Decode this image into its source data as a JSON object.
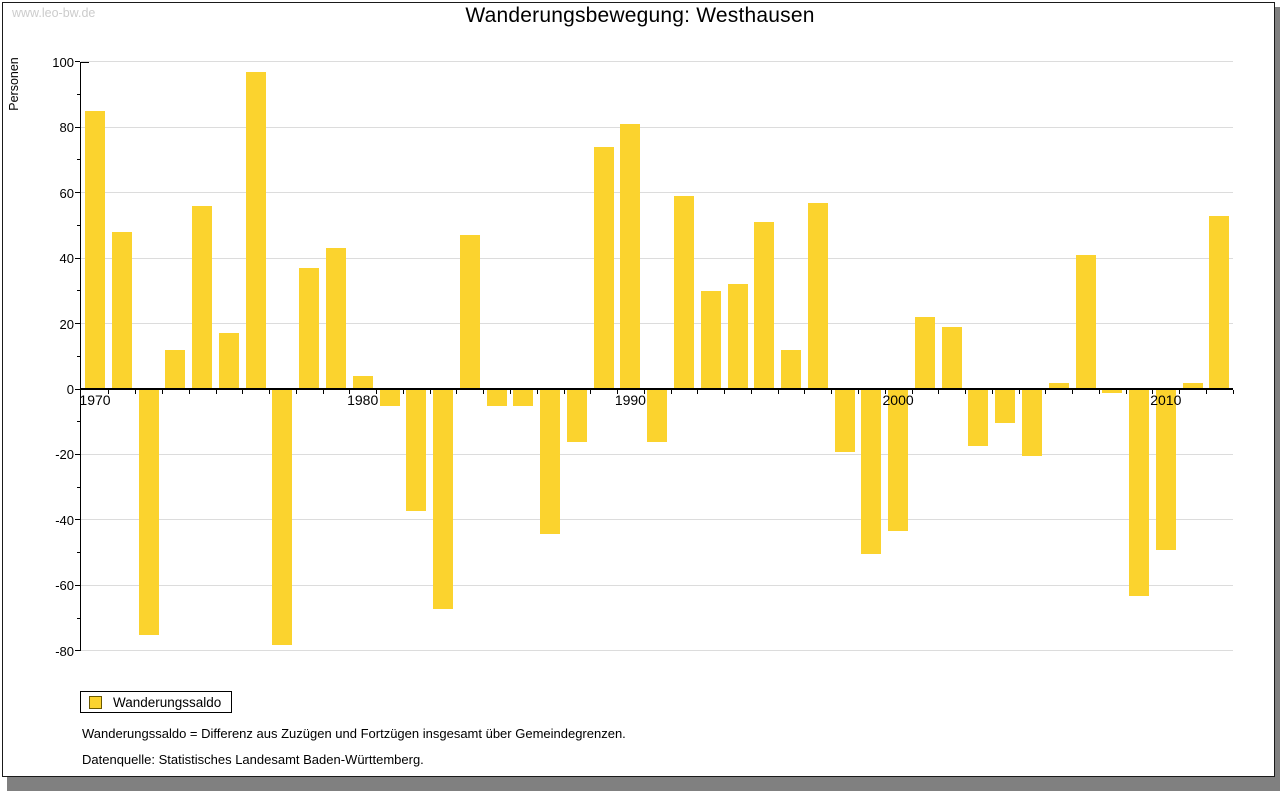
{
  "watermark": "www.leo-bw.de",
  "title": "Wanderungsbewegung: Westhausen",
  "legend": {
    "label": "Wanderungssaldo"
  },
  "footnotes": [
    "Wanderungssaldo = Differenz aus Zuzügen und Fortzügen insgesamt über Gemeindegrenzen.",
    "Datenquelle: Statistisches Landesamt Baden-Württemberg."
  ],
  "colors": {
    "bar": "#fbd32e",
    "legend_swatch_border": "#6b5900",
    "gridline": "#dcdcdc",
    "axis": "#000000",
    "watermark": "#cccccc"
  },
  "chart_data": {
    "type": "bar",
    "title": "Wanderungsbewegung: Westhausen",
    "xlabel": "",
    "ylabel": "Personen",
    "x": [
      1970,
      1971,
      1972,
      1973,
      1974,
      1975,
      1976,
      1977,
      1978,
      1979,
      1980,
      1981,
      1982,
      1983,
      1984,
      1985,
      1986,
      1987,
      1988,
      1989,
      1990,
      1991,
      1992,
      1993,
      1994,
      1995,
      1996,
      1997,
      1998,
      1999,
      2000,
      2001,
      2002,
      2003,
      2004,
      2005,
      2006,
      2007,
      2008,
      2009,
      2010,
      2011,
      2012
    ],
    "series": [
      {
        "name": "Wanderungssaldo",
        "values": [
          85,
          48,
          -75,
          12,
          56,
          17,
          97,
          -78,
          37,
          43,
          4,
          -5,
          -37,
          -67,
          47,
          -5,
          -5,
          -44,
          -16,
          74,
          81,
          -16,
          59,
          30,
          32,
          51,
          12,
          57,
          -19,
          -50,
          -43,
          22,
          19,
          -17,
          -10,
          -20,
          2,
          41,
          -1,
          -63,
          -49,
          2,
          53
        ]
      }
    ],
    "x_tick_labels": [
      1970,
      1980,
      1990,
      2000,
      2010
    ],
    "ylim": [
      -80,
      100
    ],
    "ytick_step": 20,
    "ytick_minor_step": 10,
    "grid": true,
    "legend_position": "bottom-left"
  }
}
